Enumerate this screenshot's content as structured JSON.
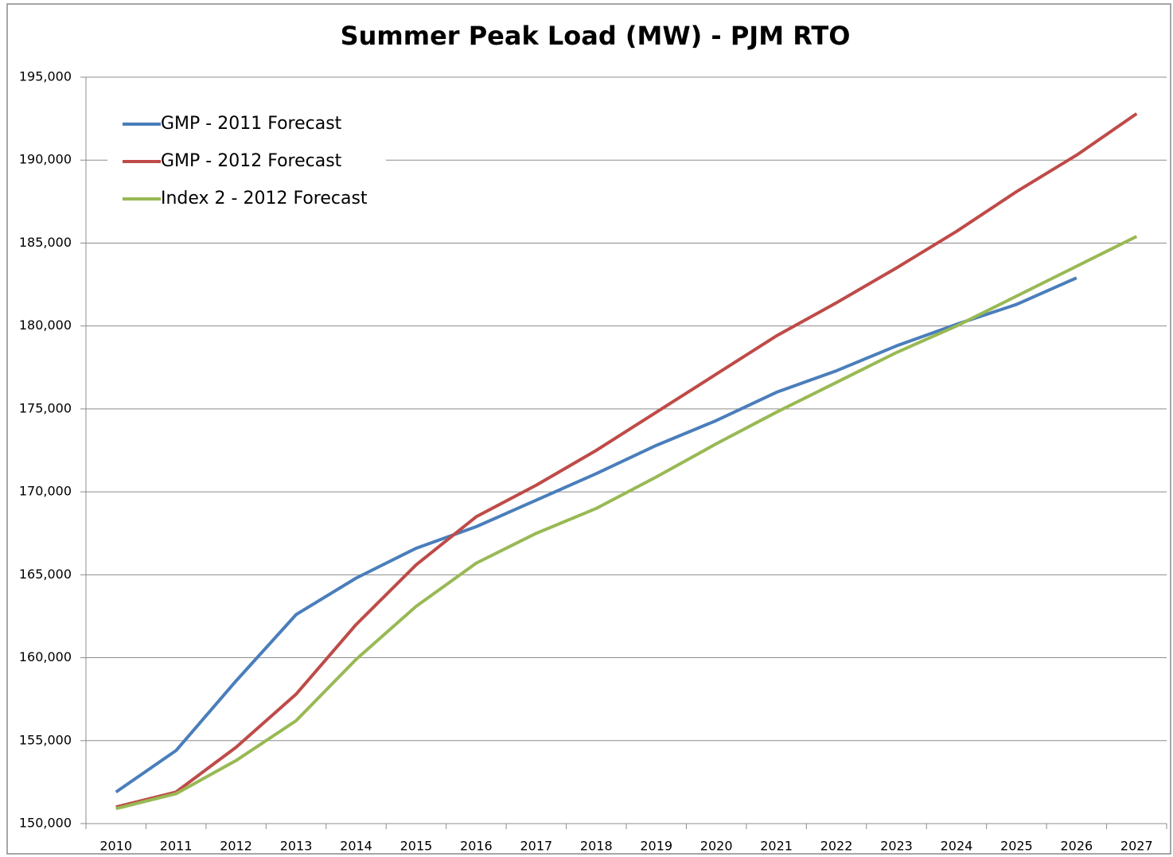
{
  "chart_data": {
    "type": "line",
    "title": "Summer Peak Load (MW) - PJM RTO",
    "categories": [
      "2010",
      "2011",
      "2012",
      "2013",
      "2014",
      "2015",
      "2016",
      "2017",
      "2018",
      "2019",
      "2020",
      "2021",
      "2022",
      "2023",
      "2024",
      "2025",
      "2026",
      "2027"
    ],
    "series": [
      {
        "name": "GMP - 2011 Forecast",
        "color": "#4a7ebb",
        "values": [
          151900,
          154400,
          158600,
          162600,
          164800,
          166600,
          167900,
          169500,
          171100,
          172800,
          174300,
          176000,
          177300,
          178800,
          180100,
          181300,
          182900,
          null
        ]
      },
      {
        "name": "GMP - 2012 Forecast",
        "color": "#be4b48",
        "values": [
          151000,
          151900,
          154600,
          157800,
          162000,
          165600,
          168500,
          170400,
          172500,
          174800,
          177100,
          179400,
          181400,
          183500,
          185700,
          188100,
          190300,
          192800
        ]
      },
      {
        "name": "Index 2 - 2012 Forecast",
        "color": "#98b954",
        "values": [
          150900,
          151800,
          153800,
          156200,
          159900,
          163100,
          165700,
          167500,
          169000,
          170900,
          172900,
          174800,
          176600,
          178400,
          180000,
          181800,
          183600,
          185400
        ]
      }
    ],
    "ylim": [
      150000,
      195000
    ],
    "yticks": [
      {
        "value": 150000,
        "label": "150,000"
      },
      {
        "value": 155000,
        "label": "155,000"
      },
      {
        "value": 160000,
        "label": "160,000"
      },
      {
        "value": 165000,
        "label": "165,000"
      },
      {
        "value": 170000,
        "label": "170,000"
      },
      {
        "value": 175000,
        "label": "175,000"
      },
      {
        "value": 180000,
        "label": "180,000"
      },
      {
        "value": 185000,
        "label": "185,000"
      },
      {
        "value": 190000,
        "label": "190,000"
      },
      {
        "value": 195000,
        "label": "195,000"
      }
    ],
    "grid": true,
    "legend": "top-left"
  }
}
